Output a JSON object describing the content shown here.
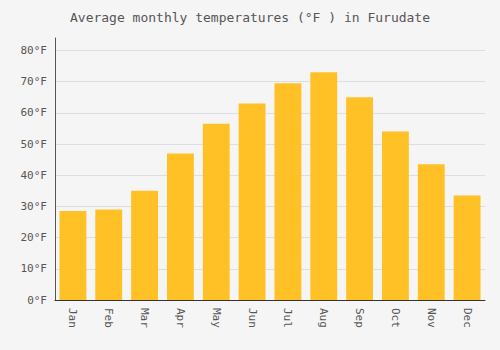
{
  "chart_data": {
    "type": "bar",
    "title": "Average monthly temperatures (°F ) in Furudate",
    "categories": [
      "Jan",
      "Feb",
      "Mar",
      "Apr",
      "May",
      "Jun",
      "Jul",
      "Aug",
      "Sep",
      "Oct",
      "Nov",
      "Dec"
    ],
    "values": [
      28.5,
      29.0,
      35.0,
      47.0,
      56.5,
      63.0,
      69.5,
      73.0,
      65.0,
      54.0,
      43.5,
      33.5
    ],
    "color": "#FFC125",
    "ylim": [
      0,
      84
    ],
    "yticks": [
      {
        "value": 0,
        "label": "0°F"
      },
      {
        "value": 10,
        "label": "10°F"
      },
      {
        "value": 20,
        "label": "20°F"
      },
      {
        "value": 30,
        "label": "30°F"
      },
      {
        "value": 40,
        "label": "40°F"
      },
      {
        "value": 50,
        "label": "50°F"
      },
      {
        "value": 60,
        "label": "60°F"
      },
      {
        "value": 70,
        "label": "70°F"
      },
      {
        "value": 80,
        "label": "80°F"
      }
    ],
    "grid": true
  }
}
